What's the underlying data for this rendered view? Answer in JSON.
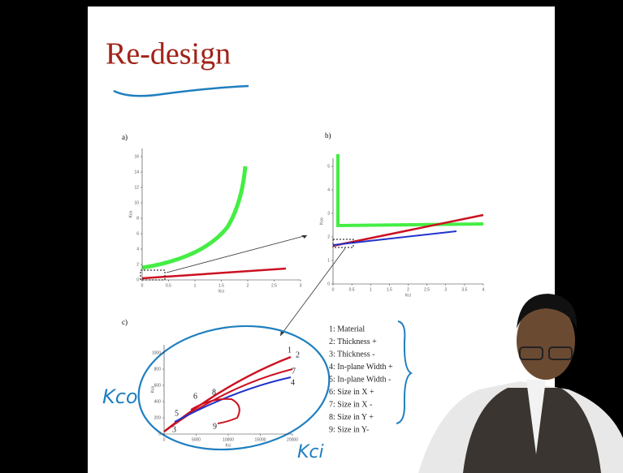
{
  "slide": {
    "title": "Re-design",
    "figures": [
      {
        "label": "a)",
        "axis_x": "Kci",
        "axis_y": "Kco",
        "xticks": [
          0,
          0.5,
          1,
          1.5,
          2,
          2.5,
          3
        ],
        "yticks": [
          0,
          2,
          4,
          6,
          8,
          10,
          12,
          14,
          16
        ]
      },
      {
        "label": "b)",
        "axis_x": "Kci",
        "axis_y": "Kco",
        "xticks": [
          0,
          0.5,
          1,
          1.5,
          2,
          2.5,
          3,
          3.5,
          4
        ],
        "yticks": [
          0,
          1,
          2,
          3,
          4,
          5
        ]
      },
      {
        "label": "c)",
        "axis_x": "Kci",
        "axis_y": "Kco",
        "xticks": [
          0,
          5000,
          10000,
          15000,
          20000
        ],
        "yticks": [
          0,
          200,
          400,
          600,
          800,
          1000
        ]
      }
    ],
    "curve_labels": [
      "1",
      "2",
      "3",
      "4",
      "5",
      "6",
      "7",
      "8",
      "9"
    ],
    "legend": [
      "1: Material",
      "2: Thickness +",
      "3: Thickness -",
      "4: In-plane Width +",
      "5: In-plane Width -",
      "6: Size in X +",
      "7: Size in X -",
      "8: Size in Y +",
      "9: Size in Y-"
    ]
  },
  "annotations": {
    "y_axis": "Kco",
    "x_axis": "Kci"
  }
}
